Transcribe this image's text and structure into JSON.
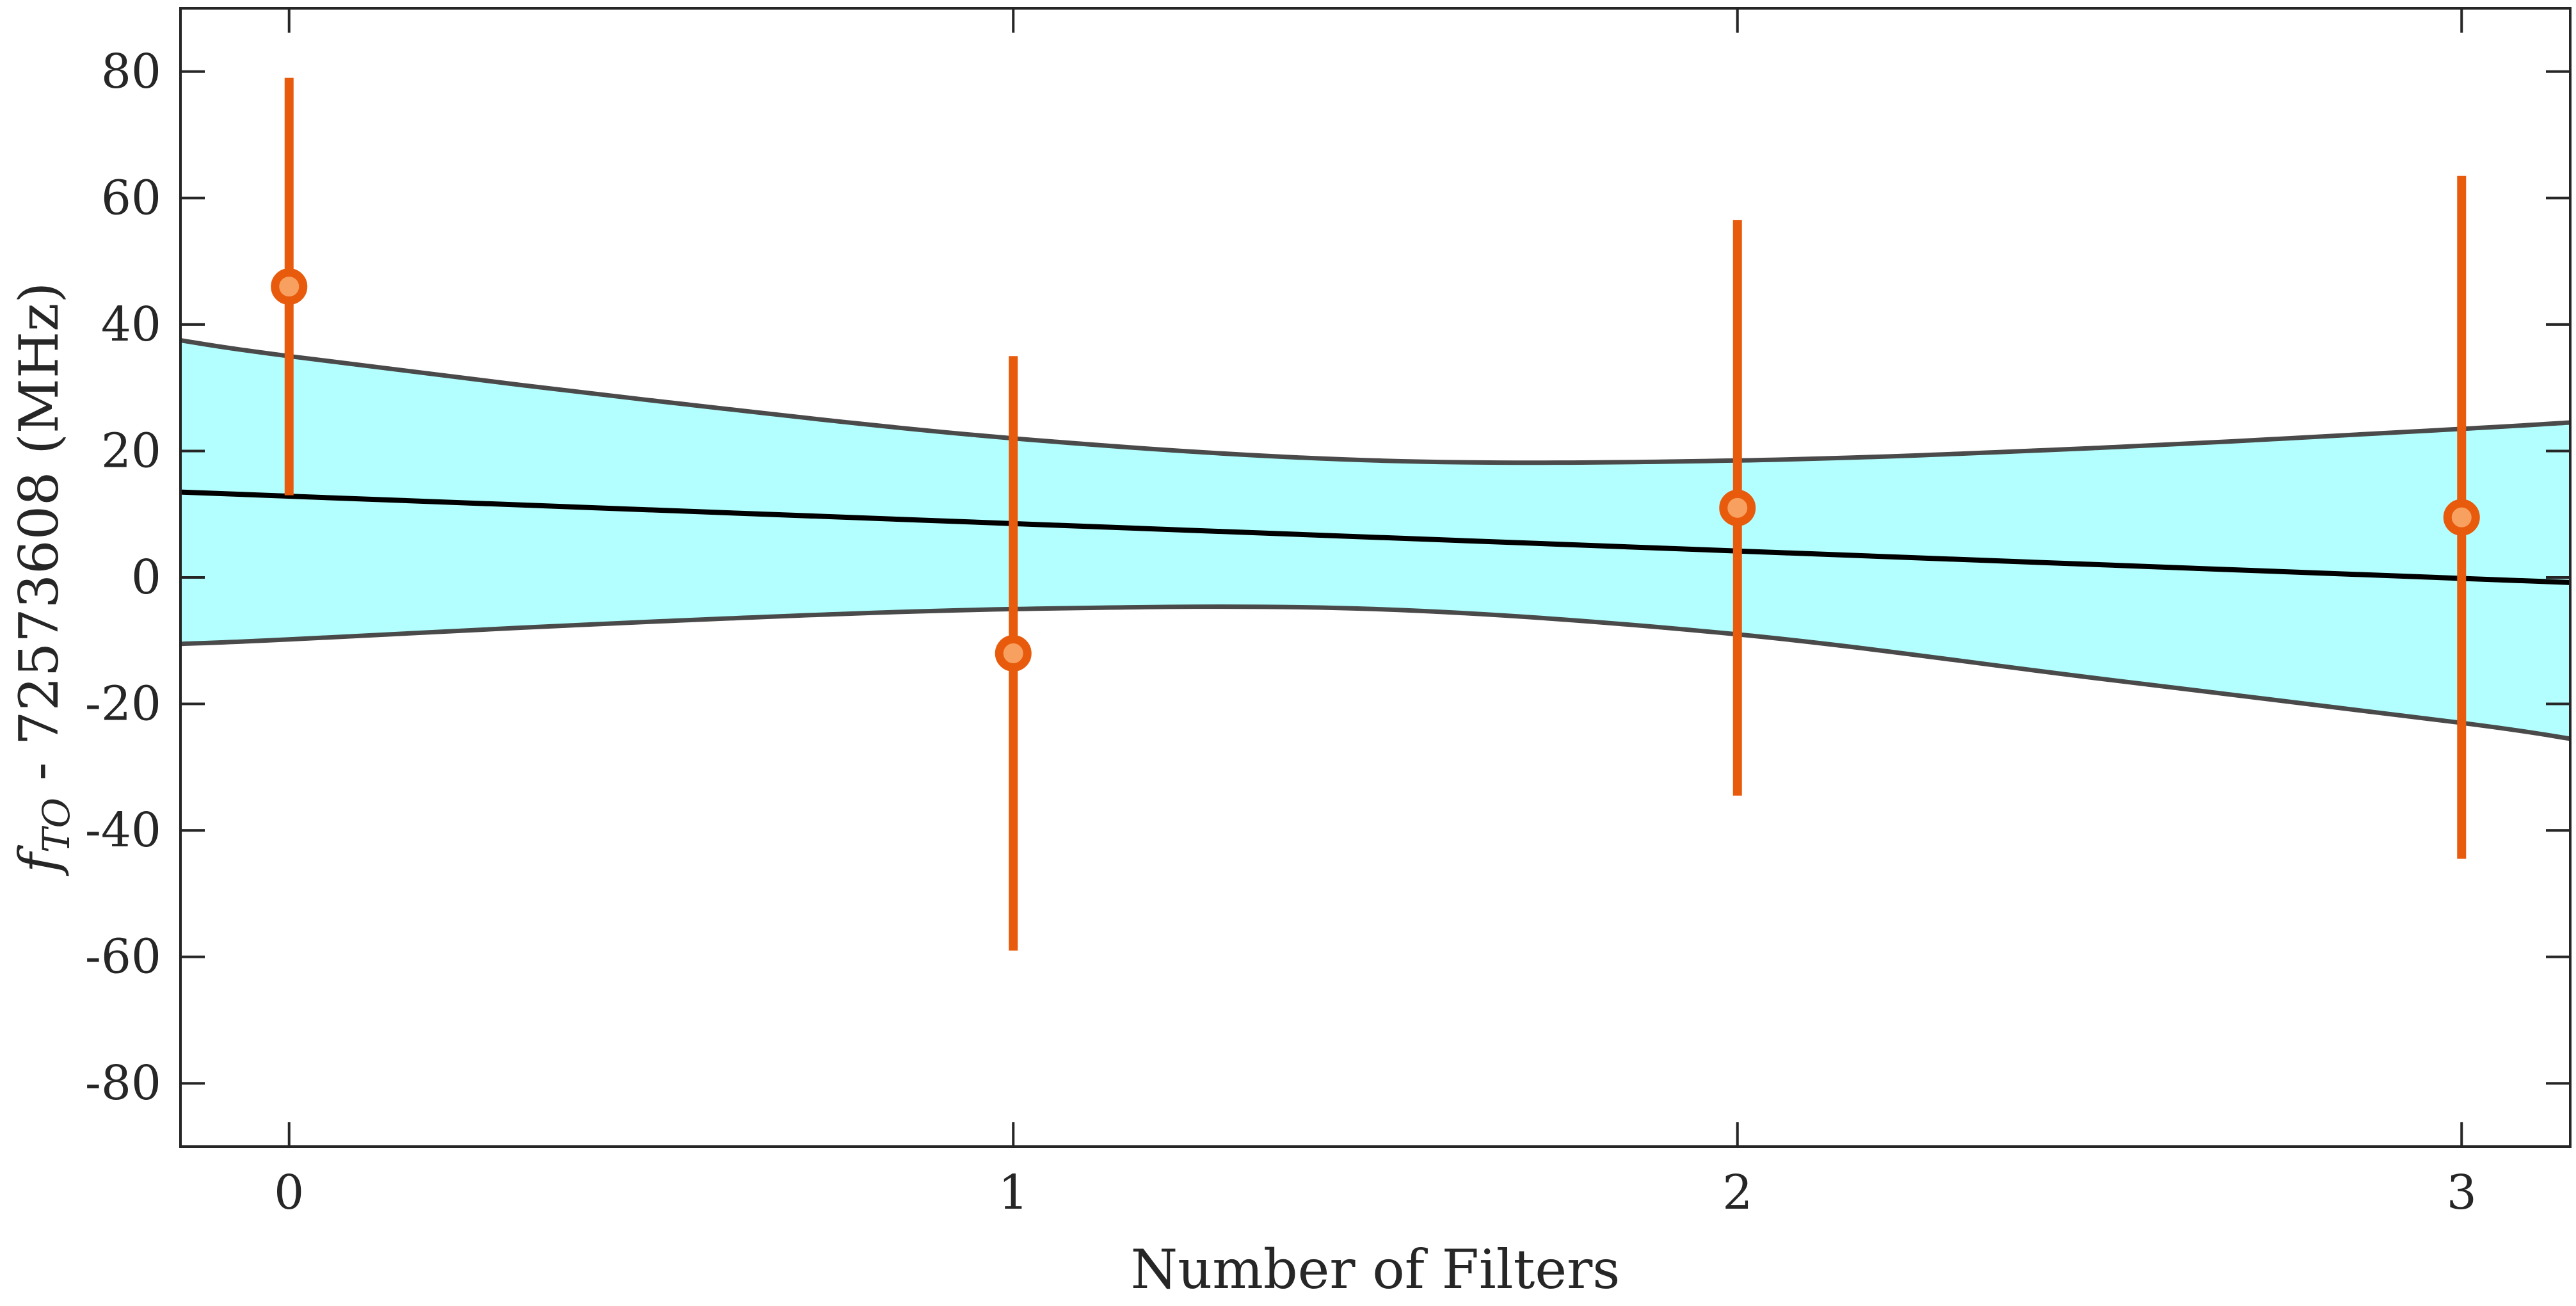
{
  "chart_data": {
    "type": "scatter",
    "xlabel": "Number of Filters",
    "ylabel_symbol": "f",
    "ylabel_subscript": "TO",
    "ylabel_rest": " - 72573608 (MHz)",
    "xlim": [
      -0.15,
      3.15
    ],
    "ylim": [
      -90,
      90
    ],
    "xticks": [
      0,
      1,
      2,
      3
    ],
    "xtick_labels": [
      "0",
      "1",
      "2",
      "3"
    ],
    "yticks": [
      -80,
      -60,
      -40,
      -20,
      0,
      20,
      40,
      60,
      80
    ],
    "ytick_labels": [
      "-80",
      "-60",
      "-40",
      "-20",
      "0",
      "20",
      "40",
      "60",
      "80"
    ],
    "grid": false,
    "points": {
      "x": [
        0,
        1,
        2,
        3
      ],
      "y": [
        46,
        -12,
        11,
        9.5
      ],
      "yerr": [
        33,
        47,
        45.5,
        54
      ],
      "color": "#e85a0c"
    },
    "fit_line": {
      "x": [
        -0.15,
        3.15
      ],
      "y": [
        13.5,
        -0.8
      ],
      "color": "#000000"
    },
    "confidence_band": {
      "x": [
        -0.15,
        0,
        0.5,
        1,
        1.5,
        2,
        2.5,
        3,
        3.15
      ],
      "upper": [
        37.5,
        35,
        28,
        22,
        18.5,
        18.5,
        20.5,
        23.5,
        24.5
      ],
      "lower": [
        -10.5,
        -9.8,
        -7,
        -5,
        -5,
        -9,
        -16,
        -23,
        -25.5
      ],
      "fill": "#b3ffff",
      "stroke": "#4a4a4a"
    }
  }
}
